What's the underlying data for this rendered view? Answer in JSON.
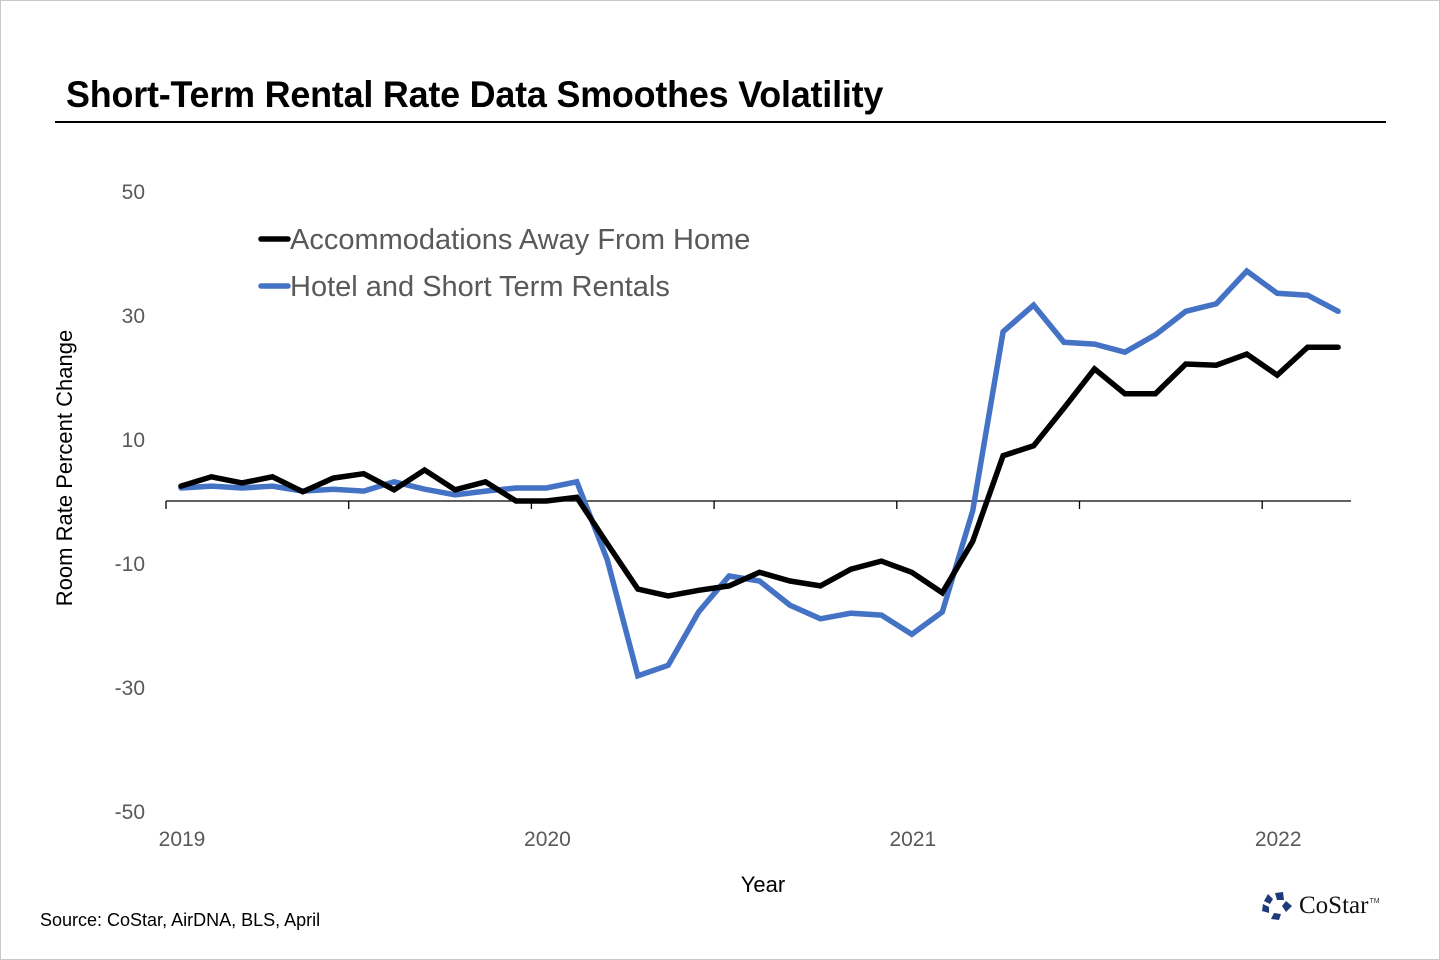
{
  "title": "Short-Term Rental Rate Data Smoothes Volatility",
  "source": "Source: CoStar, AirDNA, BLS, April",
  "logo": {
    "icon": "costar-star-icon",
    "text": "CoStar",
    "trademark": "TM",
    "color": "#1f3a7a"
  },
  "chart_data": {
    "type": "line",
    "title": "Short-Term Rental Rate Data Smoothes Volatility",
    "xlabel": "Year",
    "ylabel": "Room Rate Percent Change",
    "ylim": [
      -50,
      50
    ],
    "yticks": [
      50,
      30,
      10,
      -10,
      -30,
      -50
    ],
    "ytick_labels": [
      "50",
      "30",
      "10",
      "-10",
      "-30",
      "-50"
    ],
    "xtick_labels": [
      "2019",
      "2020",
      "2021",
      "2022"
    ],
    "x_start": "2019-01",
    "x_frequency": "monthly",
    "grid": false,
    "legend_position": "top-left",
    "series": [
      {
        "name": "Accommodations Away From Home",
        "color": "#000000",
        "values": [
          2.4,
          3.9,
          2.9,
          3.9,
          1.5,
          3.7,
          4.4,
          1.8,
          5.0,
          1.8,
          3.1,
          0.0,
          0.0,
          0.6,
          -6.9,
          -14.2,
          -15.3,
          -14.4,
          -13.7,
          -11.5,
          -12.9,
          -13.7,
          -11.0,
          -9.7,
          -11.5,
          -14.8,
          -6.5,
          7.3,
          8.9,
          15.0,
          21.3,
          17.3,
          17.3,
          22.1,
          21.9,
          23.7,
          20.3,
          24.8,
          24.8
        ]
      },
      {
        "name": "Hotel and Short Term Rentals",
        "color": "#4472c4",
        "values": [
          2.1,
          2.4,
          2.1,
          2.4,
          1.6,
          1.9,
          1.6,
          3.1,
          1.9,
          1.0,
          1.6,
          2.1,
          2.1,
          3.1,
          -9.5,
          -28.2,
          -26.5,
          -17.9,
          -12.1,
          -12.9,
          -16.8,
          -19.0,
          -18.1,
          -18.4,
          -21.5,
          -17.9,
          -1.6,
          27.3,
          31.6,
          25.6,
          25.3,
          24.0,
          26.8,
          30.6,
          31.8,
          37.1,
          33.5,
          33.2,
          30.6
        ]
      }
    ]
  }
}
